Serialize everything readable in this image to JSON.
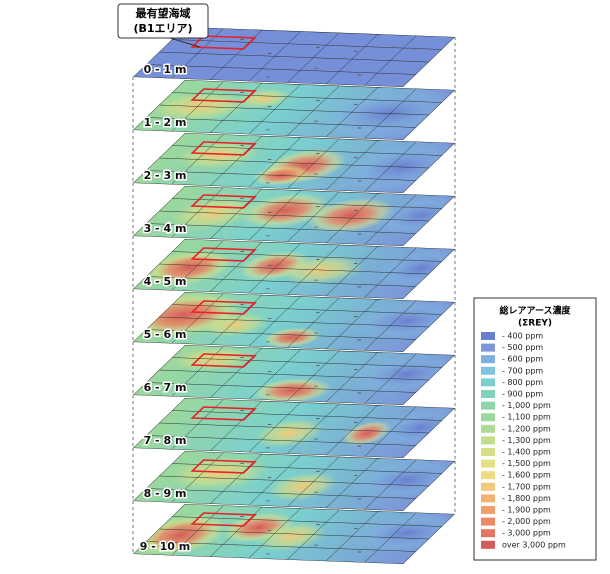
{
  "callout": {
    "line1": "最有望海域",
    "line2": "(B1エリア)"
  },
  "layers": [
    {
      "label": "0 - 1 m"
    },
    {
      "label": "1 - 2 m"
    },
    {
      "label": "2 - 3 m"
    },
    {
      "label": "3 - 4 m"
    },
    {
      "label": "4 - 5 m"
    },
    {
      "label": "5 - 6 m"
    },
    {
      "label": "6 - 7 m"
    },
    {
      "label": "7 - 8 m"
    },
    {
      "label": "8 - 9 m"
    },
    {
      "label": "9 - 10 m"
    }
  ],
  "legend": {
    "title": "総レアアース濃度",
    "subtitle": "(ΣREY)",
    "items": [
      {
        "label": "- 400 ppm",
        "color": "#6a7fcf"
      },
      {
        "label": "- 500 ppm",
        "color": "#7b96d9"
      },
      {
        "label": "- 600 ppm",
        "color": "#7fafe0"
      },
      {
        "label": "- 700 ppm",
        "color": "#7ec5e0"
      },
      {
        "label": "- 800 ppm",
        "color": "#7ad0cf"
      },
      {
        "label": "- 900 ppm",
        "color": "#80d4bd"
      },
      {
        "label": "- 1,000 ppm",
        "color": "#8cd6aa"
      },
      {
        "label": "- 1,100 ppm",
        "color": "#9bd89c"
      },
      {
        "label": "- 1,200 ppm",
        "color": "#aedb93"
      },
      {
        "label": "- 1,300 ppm",
        "color": "#c2de8b"
      },
      {
        "label": "- 1,400 ppm",
        "color": "#d5e087"
      },
      {
        "label": "- 1,500 ppm",
        "color": "#e6e283"
      },
      {
        "label": "- 1,600 ppm",
        "color": "#eedd80"
      },
      {
        "label": "- 1,700 ppm",
        "color": "#f0c97a"
      },
      {
        "label": "- 1,800 ppm",
        "color": "#f0b574"
      },
      {
        "label": "- 1,900 ppm",
        "color": "#ee9f6c"
      },
      {
        "label": "- 2,000 ppm",
        "color": "#eb8a66"
      },
      {
        "label": "- 3,000 ppm",
        "color": "#e57563"
      },
      {
        "label": "over 3,000 ppm",
        "color": "#d45d5a"
      }
    ]
  }
}
